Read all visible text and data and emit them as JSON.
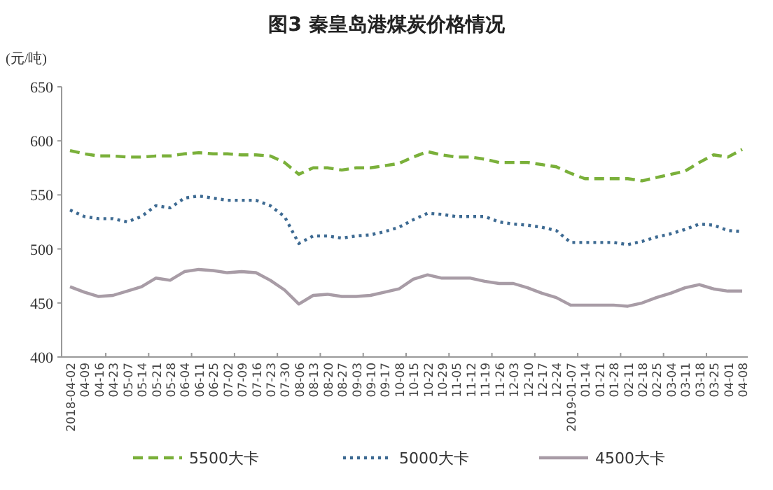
{
  "chart_data": {
    "type": "line",
    "title": "图3   秦皇岛港煤炭价格情况",
    "ylabel": "(元/吨)",
    "categories": [
      "2018-04-02",
      "04-09",
      "04-16",
      "04-23",
      "05-07",
      "05-14",
      "05-21",
      "05-28",
      "06-04",
      "06-11",
      "06-25",
      "07-02",
      "07-09",
      "07-16",
      "07-23",
      "07-30",
      "08-06",
      "08-13",
      "08-20",
      "08-27",
      "09-03",
      "09-10",
      "09-17",
      "10-08",
      "10-15",
      "10-22",
      "10-29",
      "11-05",
      "11-12",
      "11-19",
      "11-26",
      "12-03",
      "12-10",
      "12-17",
      "12-24",
      "2019-01-07",
      "01-14",
      "01-21",
      "01-28",
      "02-11",
      "02-18",
      "02-25",
      "03-04",
      "03-11",
      "03-18",
      "03-25",
      "04-01",
      "04-08"
    ],
    "ylim": [
      400,
      650
    ],
    "yticks": [
      400,
      450,
      500,
      550,
      600,
      650
    ],
    "grid": false,
    "legend": "bottom",
    "marker": "none",
    "series": [
      {
        "name": "5500大卡",
        "color": "#7ab03a",
        "line_style": "dashed",
        "values": [
          591,
          588,
          586,
          586,
          585,
          585,
          586,
          586,
          588,
          589,
          588,
          588,
          587,
          587,
          586,
          580,
          569,
          575,
          575,
          573,
          575,
          575,
          577,
          579,
          585,
          590,
          587,
          585,
          585,
          583,
          580,
          580,
          580,
          578,
          576,
          570,
          565,
          565,
          565,
          565,
          563,
          566,
          569,
          572,
          580,
          587,
          585,
          592
        ]
      },
      {
        "name": "5000大卡",
        "color": "#3d6a92",
        "line_style": "dotted",
        "values": [
          536,
          530,
          528,
          528,
          525,
          530,
          540,
          538,
          547,
          549,
          547,
          545,
          545,
          545,
          540,
          530,
          505,
          512,
          512,
          510,
          512,
          513,
          516,
          520,
          527,
          533,
          532,
          530,
          530,
          530,
          525,
          523,
          522,
          520,
          517,
          506,
          506,
          506,
          506,
          504,
          507,
          511,
          514,
          518,
          523,
          522,
          517,
          516
        ]
      },
      {
        "name": "4500大卡",
        "color": "#a89ca6",
        "line_style": "solid",
        "values": [
          465,
          460,
          456,
          457,
          461,
          465,
          473,
          471,
          479,
          481,
          480,
          478,
          479,
          478,
          471,
          462,
          449,
          457,
          458,
          456,
          456,
          457,
          460,
          463,
          472,
          476,
          473,
          473,
          473,
          470,
          468,
          468,
          464,
          459,
          455,
          448,
          448,
          448,
          448,
          447,
          450,
          455,
          459,
          464,
          467,
          463,
          461,
          461
        ]
      }
    ]
  }
}
